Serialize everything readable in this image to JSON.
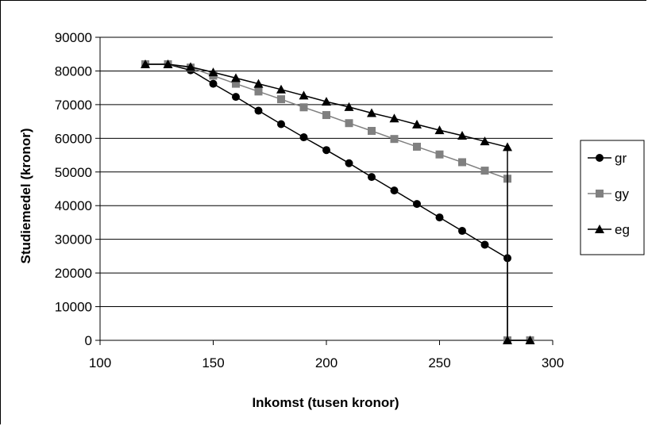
{
  "chart_data": {
    "type": "line",
    "title": "",
    "xlabel": "Inkomst (tusen kronor)",
    "ylabel": "Studiemedel (kronor)",
    "xlim": [
      100,
      300
    ],
    "ylim": [
      0,
      90000
    ],
    "xticks": [
      "100",
      "150",
      "200",
      "250",
      "300"
    ],
    "yticks": [
      "0",
      "10000",
      "20000",
      "30000",
      "40000",
      "50000",
      "60000",
      "70000",
      "80000",
      "90000"
    ],
    "grid": "horizontal",
    "legend_position": "right",
    "series": [
      {
        "name": "gr",
        "color": "#000000",
        "marker": "circle",
        "points": [
          [
            120,
            82000
          ],
          [
            130,
            82000
          ],
          [
            140,
            80200
          ],
          [
            150,
            76200
          ],
          [
            160,
            72300
          ],
          [
            170,
            68200
          ],
          [
            180,
            64200
          ],
          [
            190,
            60300
          ],
          [
            200,
            56500
          ],
          [
            210,
            52600
          ],
          [
            220,
            48500
          ],
          [
            230,
            44500
          ],
          [
            240,
            40500
          ],
          [
            250,
            36500
          ],
          [
            260,
            32500
          ],
          [
            270,
            28400
          ],
          [
            280,
            24400
          ],
          [
            280,
            0
          ],
          [
            290,
            0
          ]
        ]
      },
      {
        "name": "gy",
        "color": "#808080",
        "marker": "square",
        "points": [
          [
            120,
            82000
          ],
          [
            130,
            82000
          ],
          [
            140,
            81000
          ],
          [
            150,
            78600
          ],
          [
            160,
            76200
          ],
          [
            170,
            73900
          ],
          [
            180,
            71600
          ],
          [
            190,
            69200
          ],
          [
            200,
            66900
          ],
          [
            210,
            64500
          ],
          [
            220,
            62200
          ],
          [
            230,
            59800
          ],
          [
            240,
            57500
          ],
          [
            250,
            55200
          ],
          [
            260,
            52900
          ],
          [
            270,
            50400
          ],
          [
            280,
            48000
          ],
          [
            280,
            0
          ],
          [
            290,
            0
          ]
        ]
      },
      {
        "name": "eg",
        "color": "#000000",
        "marker": "triangle",
        "points": [
          [
            120,
            82000
          ],
          [
            130,
            82000
          ],
          [
            140,
            81200
          ],
          [
            150,
            79600
          ],
          [
            160,
            77900
          ],
          [
            170,
            76200
          ],
          [
            180,
            74500
          ],
          [
            190,
            72700
          ],
          [
            200,
            70900
          ],
          [
            210,
            69300
          ],
          [
            220,
            67500
          ],
          [
            230,
            65900
          ],
          [
            240,
            64100
          ],
          [
            250,
            62400
          ],
          [
            260,
            60800
          ],
          [
            270,
            59100
          ],
          [
            280,
            57400
          ],
          [
            280,
            0
          ],
          [
            290,
            0
          ]
        ]
      }
    ]
  }
}
